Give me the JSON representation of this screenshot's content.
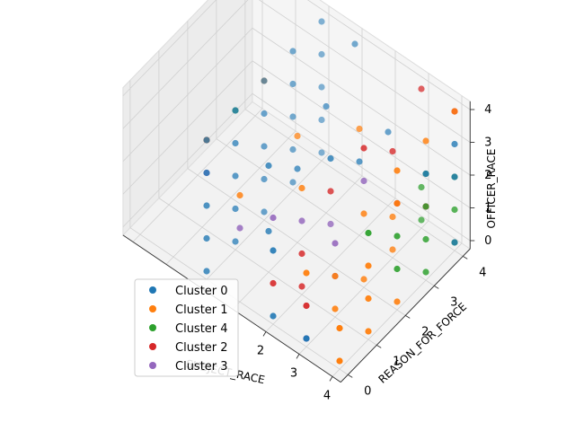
{
  "chart_data": {
    "type": "scatter",
    "projection": "3d",
    "xlabel": "SUBJECT_RACE",
    "ylabel": "REASON_FOR_FORCE",
    "zlabel": "OFFICER_RACE",
    "xlim": [
      0,
      4
    ],
    "ylim": [
      0,
      4
    ],
    "zlim": [
      0,
      4
    ],
    "x_ticks": [
      "2",
      "3",
      "4"
    ],
    "y_ticks": [
      "0",
      "1",
      "2",
      "3",
      "4"
    ],
    "z_ticks": [
      "0",
      "1",
      "2",
      "3",
      "4"
    ],
    "grid": true,
    "legend_position": "lower-left",
    "series": [
      {
        "name": "Cluster 0",
        "color": "#1f77b4",
        "points": [
          [
            0,
            0,
            0
          ],
          [
            0,
            1,
            0
          ],
          [
            0,
            2,
            0
          ],
          [
            0,
            3,
            0
          ],
          [
            0,
            4,
            0
          ],
          [
            0,
            0,
            1
          ],
          [
            0,
            1,
            1
          ],
          [
            0,
            2,
            1
          ],
          [
            0,
            3,
            1
          ],
          [
            0,
            4,
            1
          ],
          [
            0,
            0,
            2
          ],
          [
            0,
            1,
            2
          ],
          [
            0,
            2,
            2
          ],
          [
            0,
            3,
            2
          ],
          [
            0,
            4,
            2
          ],
          [
            0,
            0,
            3
          ],
          [
            0,
            1,
            3
          ],
          [
            0,
            2,
            3
          ],
          [
            0,
            3,
            3
          ],
          [
            0,
            4,
            3
          ],
          [
            0,
            0,
            4
          ],
          [
            0,
            1,
            4
          ],
          [
            0,
            2,
            4
          ],
          [
            0,
            3,
            4
          ],
          [
            0,
            4,
            4
          ],
          [
            1,
            1,
            1
          ],
          [
            1,
            2,
            2
          ],
          [
            1,
            3,
            3
          ],
          [
            1,
            4,
            4
          ],
          [
            1,
            1,
            3
          ],
          [
            2,
            0,
            0
          ],
          [
            2,
            0,
            2
          ],
          [
            2,
            3,
            2
          ],
          [
            2,
            4,
            2
          ],
          [
            2,
            2,
            3
          ],
          [
            3,
            0,
            0
          ],
          [
            4,
            4,
            0
          ],
          [
            4,
            4,
            2
          ],
          [
            4,
            3,
            3
          ],
          [
            4,
            4,
            3
          ]
        ]
      },
      {
        "name": "Cluster 1",
        "color": "#ff7f0e",
        "points": [
          [
            0,
            0,
            4
          ],
          [
            0,
            2,
            4
          ],
          [
            1,
            0,
            3
          ],
          [
            1,
            2,
            3
          ],
          [
            2,
            1,
            3
          ],
          [
            2,
            3,
            3
          ],
          [
            3,
            0,
            2
          ],
          [
            3,
            2,
            2
          ],
          [
            3,
            1,
            1
          ],
          [
            3,
            3,
            1
          ],
          [
            3,
            1,
            0
          ],
          [
            3,
            2,
            0
          ],
          [
            3,
            3,
            0
          ],
          [
            4,
            0,
            0
          ],
          [
            4,
            1,
            0
          ],
          [
            4,
            2,
            0
          ],
          [
            4,
            0,
            1
          ],
          [
            4,
            1,
            1
          ],
          [
            4,
            1,
            2
          ],
          [
            4,
            2,
            3
          ],
          [
            4,
            3,
            4
          ],
          [
            4,
            4,
            4
          ],
          [
            4,
            2,
            4
          ]
        ]
      },
      {
        "name": "Cluster 4",
        "color": "#2ca02c",
        "points": [
          [
            0,
            1,
            4
          ],
          [
            4,
            4,
            1
          ],
          [
            4,
            3,
            1
          ],
          [
            4,
            3,
            2
          ],
          [
            4,
            4,
            2
          ],
          [
            4,
            2,
            1
          ],
          [
            4,
            2,
            2
          ],
          [
            4,
            1,
            3
          ],
          [
            4,
            3,
            3
          ],
          [
            3,
            4,
            1
          ],
          [
            3,
            4,
            0
          ],
          [
            4,
            3,
            0
          ],
          [
            4,
            4,
            0
          ]
        ]
      },
      {
        "name": "Cluster 2",
        "color": "#d62728",
        "points": [
          [
            0,
            0,
            4
          ],
          [
            2,
            1,
            1
          ],
          [
            2,
            2,
            2
          ],
          [
            3,
            3,
            3
          ],
          [
            3,
            4,
            4
          ],
          [
            4,
            3,
            2
          ],
          [
            2,
            0,
            1
          ],
          [
            2,
            1,
            0
          ],
          [
            3,
            0,
            1
          ],
          [
            3,
            2,
            4
          ],
          [
            4,
            4,
            4
          ],
          [
            4,
            2,
            3
          ]
        ]
      },
      {
        "name": "Cluster 3",
        "color": "#9467bd",
        "points": [
          [
            0,
            0,
            3
          ],
          [
            1,
            0,
            2
          ],
          [
            2,
            1,
            2
          ],
          [
            3,
            1,
            2
          ],
          [
            2,
            0,
            3
          ],
          [
            3,
            2,
            3
          ],
          [
            3,
            1,
            1
          ],
          [
            3,
            0,
            0
          ],
          [
            2,
            2,
            1
          ]
        ]
      }
    ]
  }
}
